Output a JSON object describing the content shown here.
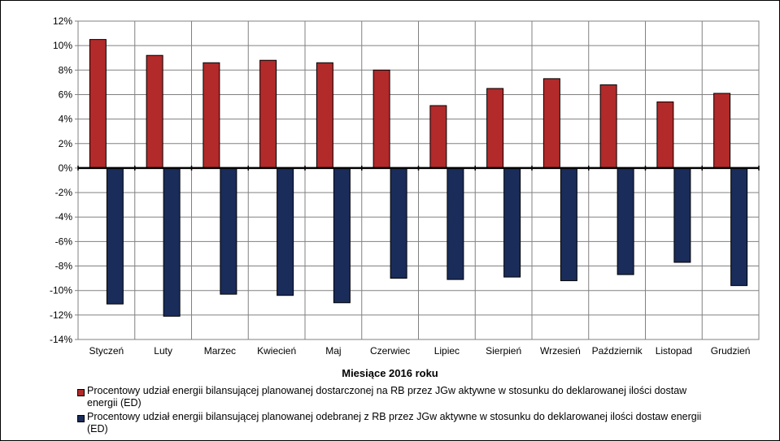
{
  "chart_data": {
    "type": "bar",
    "xlabel": "Miesiące 2016  roku",
    "ylabel": "",
    "ylim": [
      -14,
      12
    ],
    "y_ticks": [
      12,
      10,
      8,
      6,
      4,
      2,
      0,
      -2,
      -4,
      -6,
      -8,
      -10,
      -12,
      -14
    ],
    "y_tick_labels": [
      "12%",
      "10%",
      "8%",
      "6%",
      "4%",
      "2%",
      "0%",
      "-2%",
      "-4%",
      "-6%",
      "-8%",
      "-10%",
      "-12%",
      "-14%"
    ],
    "grid": true,
    "legend_position": "bottom",
    "categories": [
      "Styczeń",
      "Luty",
      "Marzec",
      "Kwiecień",
      "Maj",
      "Czerwiec",
      "Lipiec",
      "Sierpień",
      "Wrzesień",
      "Październik",
      "Listopad",
      "Grudzień"
    ],
    "series": [
      {
        "name": "Procentowy udział energii bilansującej planowanej dostarczonej na RB przez JGw aktywne w stosunku do deklarowanej ilości dostaw energii (ED)",
        "color": "#b22a2a",
        "values": [
          10.5,
          9.2,
          8.6,
          8.8,
          8.6,
          8.0,
          5.1,
          6.5,
          7.3,
          6.8,
          5.4,
          6.1
        ]
      },
      {
        "name": "Procentowy udział energii bilansującej planowanej odebranej z RB przez JGw aktywne w stosunku do deklarowanej ilości dostaw energii (ED)",
        "color": "#1a2c5a",
        "values": [
          -11.1,
          -12.1,
          -10.3,
          -10.4,
          -11.0,
          -9.0,
          -9.1,
          -8.9,
          -9.2,
          -8.7,
          -7.7,
          -9.6
        ]
      }
    ]
  }
}
